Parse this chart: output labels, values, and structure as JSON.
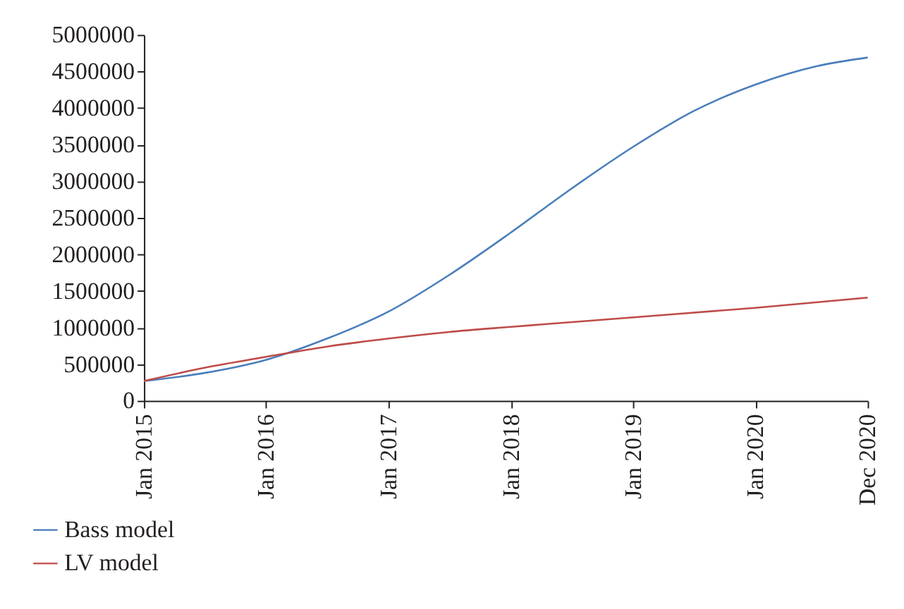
{
  "chart_data": {
    "type": "line",
    "xlim": [
      "2015-01",
      "2020-12"
    ],
    "xticks": [
      {
        "value": "2015-01",
        "label": "Jan 2015"
      },
      {
        "value": "2016-01",
        "label": "Jan 2016"
      },
      {
        "value": "2017-01",
        "label": "Jan 2017"
      },
      {
        "value": "2018-01",
        "label": "Jan 2018"
      },
      {
        "value": "2019-01",
        "label": "Jan 2019"
      },
      {
        "value": "2020-01",
        "label": "Jan 2020"
      },
      {
        "value": "2020-12",
        "label": "Dec 2020"
      }
    ],
    "ylim": [
      0,
      5000000
    ],
    "yticks": [
      0,
      500000,
      1000000,
      1500000,
      2000000,
      2500000,
      3000000,
      3500000,
      4000000,
      4500000,
      5000000
    ],
    "grid": false,
    "legend": "bottom",
    "marker": "none",
    "line_style": "solid",
    "series": [
      {
        "name": "Bass model",
        "color": "#4a7ebb",
        "x": [
          "2015-01",
          "2015-07",
          "2016-01",
          "2016-07",
          "2017-01",
          "2017-07",
          "2018-01",
          "2018-07",
          "2019-01",
          "2019-07",
          "2020-01",
          "2020-07",
          "2020-12"
        ],
        "values": [
          270000,
          380000,
          560000,
          850000,
          1220000,
          1720000,
          2300000,
          2900000,
          3470000,
          3960000,
          4320000,
          4570000,
          4690000
        ]
      },
      {
        "name": "LV model",
        "color": "#be4b48",
        "x": [
          "2015-01",
          "2015-07",
          "2016-01",
          "2016-07",
          "2017-01",
          "2017-07",
          "2018-01",
          "2019-01",
          "2020-01",
          "2020-12"
        ],
        "values": [
          270000,
          450000,
          600000,
          740000,
          850000,
          940000,
          1010000,
          1140000,
          1270000,
          1410000
        ]
      }
    ]
  }
}
